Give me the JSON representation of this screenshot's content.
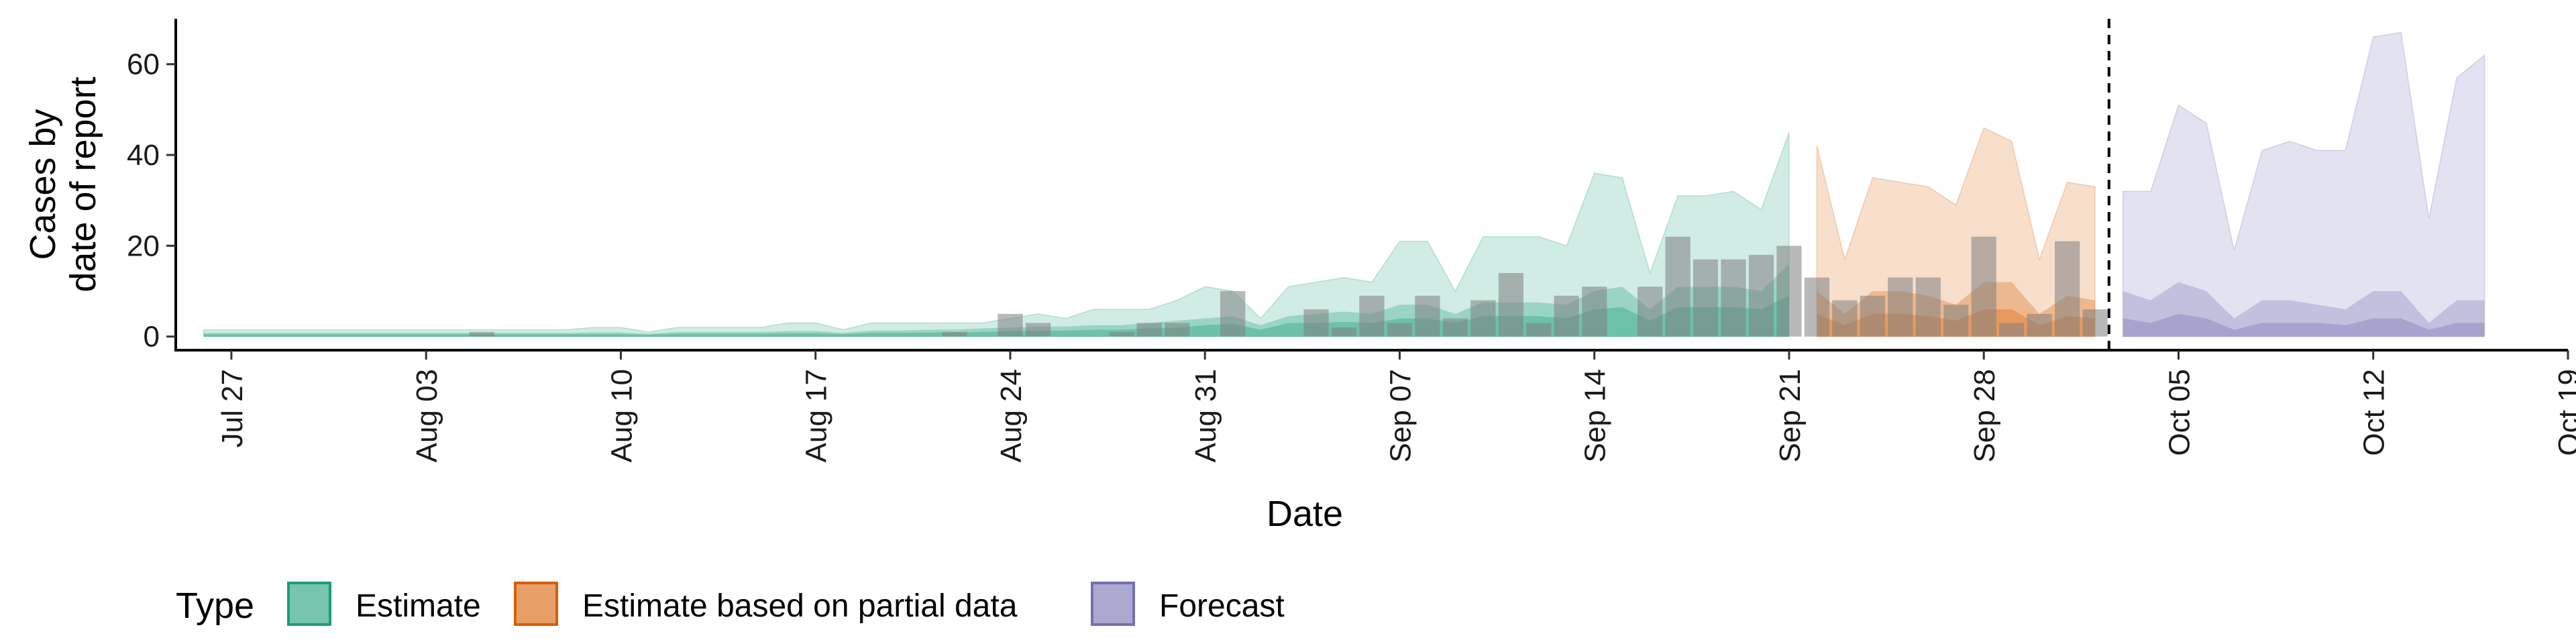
{
  "chart_data": {
    "type": "area",
    "xlabel": "Date",
    "ylabel": "Cases by date of report",
    "ylabel_lines": [
      "Cases by",
      "date of report"
    ],
    "x_start": "Jul 25",
    "x_domain": [
      "2020-07-25",
      "2020-10-19"
    ],
    "y_domain": [
      -3,
      70
    ],
    "y_ticks": [
      0,
      20,
      40,
      60
    ],
    "x_ticks": [
      {
        "date": "2020-07-27",
        "label": "Jul 27"
      },
      {
        "date": "2020-08-03",
        "label": "Aug 03"
      },
      {
        "date": "2020-08-10",
        "label": "Aug 10"
      },
      {
        "date": "2020-08-17",
        "label": "Aug 17"
      },
      {
        "date": "2020-08-24",
        "label": "Aug 24"
      },
      {
        "date": "2020-08-31",
        "label": "Aug 31"
      },
      {
        "date": "2020-09-07",
        "label": "Sep 07"
      },
      {
        "date": "2020-09-14",
        "label": "Sep 14"
      },
      {
        "date": "2020-09-21",
        "label": "Sep 21"
      },
      {
        "date": "2020-09-28",
        "label": "Sep 28"
      },
      {
        "date": "2020-10-05",
        "label": "Oct 05"
      },
      {
        "date": "2020-10-12",
        "label": "Oct 12"
      },
      {
        "date": "2020-10-19",
        "label": "Oct 19"
      }
    ],
    "forecast_date": "2020-10-02",
    "legend": {
      "title": "Type",
      "position": "bottom",
      "items": [
        {
          "label": "Estimate",
          "color": "#1b9e77"
        },
        {
          "label": "Estimate based on partial data",
          "color": "#d95f02"
        },
        {
          "label": "Forecast",
          "color": "#7570b3"
        }
      ]
    },
    "series": [
      {
        "name": "Estimate",
        "color": "#1b9e77",
        "start_date": "2020-07-26",
        "outer_upper": [
          1.5,
          1.5,
          1.5,
          1.5,
          1.5,
          1.5,
          1.5,
          1.5,
          1.5,
          1.5,
          1.5,
          1.5,
          1.5,
          1.5,
          2.0,
          2.0,
          1.0,
          2.0,
          2.0,
          2.0,
          2.0,
          3.0,
          3.0,
          1.5,
          3.0,
          3.0,
          3.0,
          3.0,
          3.0,
          4.0,
          5.0,
          4.0,
          6.0,
          6.0,
          6.0,
          8.0,
          11.0,
          10.0,
          4.0,
          11.0,
          12.0,
          13.0,
          12.0,
          21.0,
          21.0,
          10.0,
          22.0,
          22.0,
          22.0,
          20.0,
          36.0,
          35.0,
          14.0,
          31.0,
          31.0,
          32.0,
          28.0,
          45.0
        ],
        "mid_upper": [
          0.8,
          0.8,
          0.8,
          0.8,
          0.8,
          0.8,
          0.8,
          0.8,
          0.8,
          0.8,
          0.8,
          0.8,
          0.8,
          0.8,
          0.9,
          0.9,
          0.6,
          1.0,
          1.0,
          1.0,
          1.0,
          1.2,
          1.2,
          0.8,
          1.3,
          1.3,
          1.5,
          1.5,
          1.8,
          2.0,
          2.2,
          2.2,
          2.5,
          2.5,
          3.0,
          3.5,
          4.0,
          4.5,
          2.5,
          4.5,
          5.0,
          5.5,
          5.0,
          7.0,
          7.0,
          5.0,
          7.5,
          7.5,
          7.5,
          7.0,
          10.0,
          11.0,
          6.0,
          11.0,
          11.0,
          11.0,
          10.0,
          16.0
        ],
        "inner_upper": [
          0.5,
          0.5,
          0.5,
          0.5,
          0.5,
          0.5,
          0.5,
          0.5,
          0.5,
          0.5,
          0.5,
          0.5,
          0.5,
          0.5,
          0.5,
          0.5,
          0.4,
          0.6,
          0.6,
          0.6,
          0.6,
          0.7,
          0.7,
          0.5,
          0.8,
          0.8,
          0.9,
          0.9,
          1.0,
          1.2,
          1.3,
          1.3,
          1.5,
          1.5,
          1.8,
          2.0,
          2.5,
          2.8,
          1.5,
          3.0,
          3.0,
          3.2,
          3.0,
          4.0,
          4.0,
          3.0,
          4.5,
          4.5,
          4.5,
          4.0,
          6.0,
          6.5,
          3.5,
          6.5,
          6.5,
          6.5,
          6.0,
          9.0
        ]
      },
      {
        "name": "Estimate based on partial data",
        "color": "#d95f02",
        "start_date": "2020-09-22",
        "outer_upper": [
          42,
          17,
          35,
          34,
          33,
          29,
          46,
          43,
          17,
          34,
          33
        ],
        "mid_upper": [
          10,
          5,
          10,
          10,
          9,
          7,
          12,
          12,
          5,
          9,
          8
        ],
        "inner_upper": [
          5,
          2.5,
          5,
          5,
          4.5,
          3.5,
          6,
          6,
          2.5,
          4.5,
          4
        ]
      },
      {
        "name": "Forecast",
        "color": "#7570b3",
        "start_date": "2020-10-03",
        "outer_upper": [
          32,
          32,
          51,
          47,
          19,
          41,
          43,
          41,
          41,
          66,
          67,
          26,
          57,
          62
        ],
        "mid_upper": [
          10,
          8,
          12,
          10,
          4,
          8,
          8,
          7,
          6,
          10,
          10,
          3,
          8,
          8
        ],
        "inner_upper": [
          4,
          3,
          5,
          4,
          1.5,
          3,
          3,
          3,
          2.5,
          4,
          4,
          1.5,
          3,
          3
        ]
      }
    ],
    "reported_cases": {
      "color": "#808080",
      "points": [
        {
          "date": "2020-08-05",
          "value": 1
        },
        {
          "date": "2020-08-22",
          "value": 1
        },
        {
          "date": "2020-08-24",
          "value": 5
        },
        {
          "date": "2020-08-25",
          "value": 3
        },
        {
          "date": "2020-08-28",
          "value": 1
        },
        {
          "date": "2020-08-29",
          "value": 3
        },
        {
          "date": "2020-08-30",
          "value": 3
        },
        {
          "date": "2020-09-01",
          "value": 10
        },
        {
          "date": "2020-09-04",
          "value": 6
        },
        {
          "date": "2020-09-05",
          "value": 2
        },
        {
          "date": "2020-09-06",
          "value": 9
        },
        {
          "date": "2020-09-07",
          "value": 3
        },
        {
          "date": "2020-09-08",
          "value": 9
        },
        {
          "date": "2020-09-09",
          "value": 4
        },
        {
          "date": "2020-09-10",
          "value": 8
        },
        {
          "date": "2020-09-11",
          "value": 14
        },
        {
          "date": "2020-09-12",
          "value": 3
        },
        {
          "date": "2020-09-13",
          "value": 9
        },
        {
          "date": "2020-09-14",
          "value": 11
        },
        {
          "date": "2020-09-16",
          "value": 11
        },
        {
          "date": "2020-09-17",
          "value": 22
        },
        {
          "date": "2020-09-18",
          "value": 17
        },
        {
          "date": "2020-09-19",
          "value": 17
        },
        {
          "date": "2020-09-20",
          "value": 18
        },
        {
          "date": "2020-09-21",
          "value": 20
        },
        {
          "date": "2020-09-22",
          "value": 13
        },
        {
          "date": "2020-09-23",
          "value": 8
        },
        {
          "date": "2020-09-24",
          "value": 9
        },
        {
          "date": "2020-09-25",
          "value": 13
        },
        {
          "date": "2020-09-26",
          "value": 13
        },
        {
          "date": "2020-09-27",
          "value": 7
        },
        {
          "date": "2020-09-28",
          "value": 22
        },
        {
          "date": "2020-09-29",
          "value": 3
        },
        {
          "date": "2020-09-30",
          "value": 5
        },
        {
          "date": "2020-10-01",
          "value": 21
        },
        {
          "date": "2020-10-02",
          "value": 6
        }
      ]
    }
  }
}
